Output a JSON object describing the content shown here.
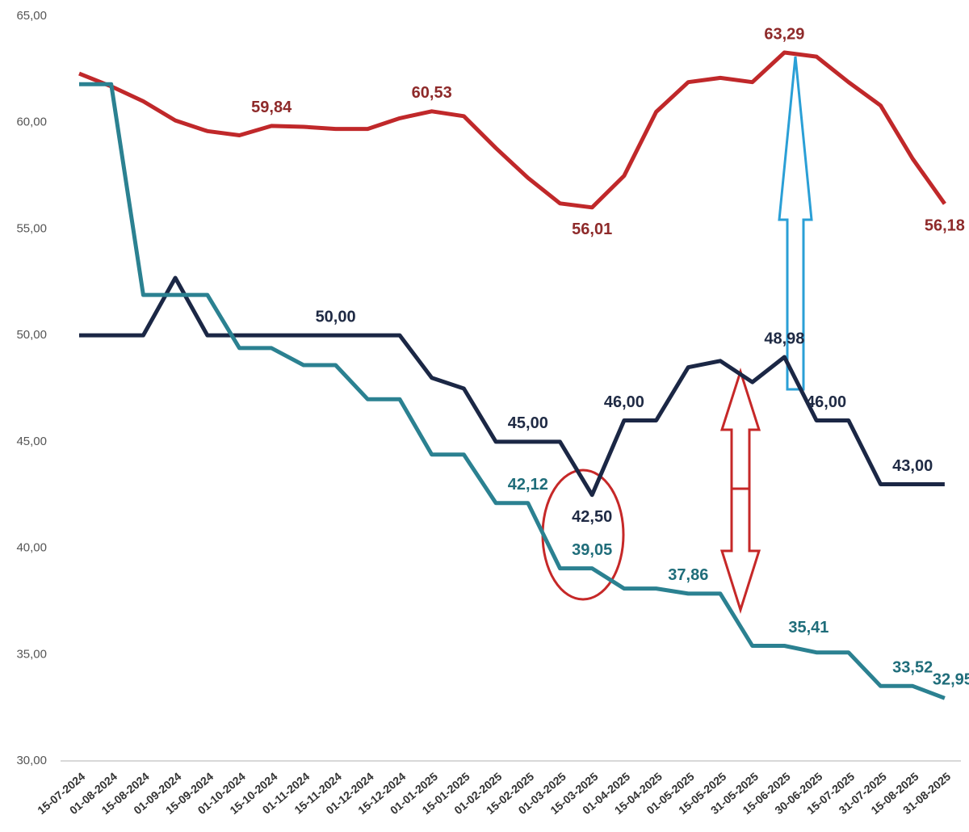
{
  "chart_data": {
    "type": "line",
    "categories": [
      "15-07-2024",
      "01-08-2024",
      "15-08-2024",
      "01-09-2024",
      "15-09-2024",
      "01-10-2024",
      "15-10-2024",
      "01-11-2024",
      "15-11-2024",
      "01-12-2024",
      "15-12-2024",
      "01-01-2025",
      "15-01-2025",
      "01-02-2025",
      "15-02-2025",
      "01-03-2025",
      "15-03-2025",
      "01-04-2025",
      "15-04-2025",
      "01-05-2025",
      "15-05-2025",
      "31-05-2025",
      "15-06-2025",
      "30-06-2025",
      "15-07-2025",
      "31-07-2025",
      "15-08-2025",
      "31-08-2025"
    ],
    "series": [
      {
        "color": "#c0282a",
        "label_color": "#8e2a2a",
        "values": [
          62.3,
          61.7,
          61.0,
          60.1,
          59.6,
          59.4,
          59.84,
          59.8,
          59.7,
          59.7,
          60.2,
          60.53,
          60.3,
          58.8,
          57.4,
          56.2,
          56.01,
          57.5,
          60.5,
          61.9,
          62.1,
          61.9,
          63.29,
          63.1,
          61.9,
          60.8,
          58.3,
          56.18
        ],
        "value_labels": [
          null,
          null,
          null,
          null,
          null,
          null,
          "59,84",
          null,
          null,
          null,
          null,
          "60,53",
          null,
          null,
          null,
          null,
          "56,01",
          null,
          null,
          null,
          null,
          null,
          "63,29",
          null,
          null,
          null,
          null,
          "56,18"
        ]
      },
      {
        "color": "#1b2745",
        "label_color": "#1f2a44",
        "values": [
          50,
          50,
          50,
          52.7,
          50,
          50,
          50,
          50,
          50,
          50,
          50,
          48.0,
          47.5,
          45,
          45,
          45,
          42.5,
          46,
          46,
          48.5,
          48.8,
          47.8,
          48.98,
          46,
          46,
          43,
          43,
          43
        ],
        "value_labels": [
          null,
          null,
          null,
          null,
          null,
          null,
          null,
          null,
          "50,00",
          null,
          null,
          null,
          null,
          null,
          "45,00",
          null,
          "42,50",
          "46,00",
          null,
          null,
          null,
          null,
          "48,98",
          "46,00",
          null,
          null,
          "43,00",
          null
        ]
      },
      {
        "color": "#2b8191",
        "label_color": "#1f6d7a",
        "values": [
          61.8,
          61.8,
          51.9,
          51.9,
          51.9,
          49.4,
          49.4,
          48.6,
          48.6,
          47.0,
          47.0,
          44.4,
          44.4,
          42.12,
          42.12,
          39.05,
          39.05,
          38.1,
          38.1,
          37.86,
          37.86,
          35.41,
          35.41,
          35.1,
          35.1,
          33.52,
          33.52,
          32.95
        ],
        "value_labels": [
          null,
          null,
          null,
          null,
          null,
          null,
          null,
          null,
          null,
          null,
          null,
          null,
          null,
          null,
          "42,12",
          null,
          "39,05",
          null,
          null,
          "37,86",
          null,
          null,
          "35,41",
          null,
          null,
          null,
          "33,52",
          "32,95"
        ]
      }
    ],
    "ylim": [
      30,
      65
    ],
    "yticks": [
      {
        "value": 30,
        "label": "30,00"
      },
      {
        "value": 35,
        "label": "35,00"
      },
      {
        "value": 40,
        "label": "40,00"
      },
      {
        "value": 45,
        "label": "45,00"
      },
      {
        "value": 50,
        "label": "50,00"
      },
      {
        "value": 55,
        "label": "55,00"
      },
      {
        "value": 60,
        "label": "60,00"
      },
      {
        "value": 65,
        "label": "65,00"
      }
    ],
    "grid": false
  }
}
